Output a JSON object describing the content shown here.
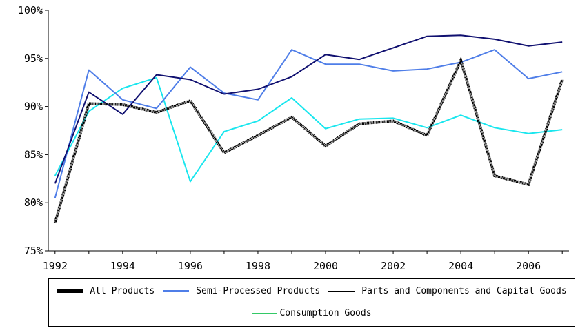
{
  "chart_data": {
    "type": "line",
    "x": [
      1992,
      1993,
      1994,
      1995,
      1996,
      1997,
      1998,
      1999,
      2000,
      2001,
      2002,
      2003,
      2004,
      2005,
      2006,
      2007
    ],
    "xticks": [
      1992,
      1994,
      1996,
      1998,
      2000,
      2002,
      2004,
      2006
    ],
    "xtick_labels": [
      "1992",
      "1994",
      "1996",
      "1998",
      "2000",
      "2002",
      "2004",
      "2006"
    ],
    "yticks": [
      75,
      80,
      85,
      90,
      95,
      100
    ],
    "ytick_labels": [
      "75%",
      "80%",
      "85%",
      "90%",
      "95%",
      "100%"
    ],
    "ylim": [
      75,
      100
    ],
    "xlim": [
      1991.8,
      2007.2
    ],
    "grid": false,
    "legend_position": "bottom",
    "series": [
      {
        "name": "All Products",
        "color": "#000000",
        "style": "thick",
        "values": [
          77.9,
          90.3,
          90.2,
          89.4,
          90.6,
          85.2,
          87.0,
          88.9,
          85.9,
          88.2,
          88.5,
          87.0,
          94.8,
          82.8,
          81.9,
          92.8
        ]
      },
      {
        "name": "Semi-Processed Products",
        "color": "#4f7ee8",
        "style": "normal",
        "values": [
          80.5,
          93.8,
          90.7,
          89.8,
          94.1,
          91.4,
          90.7,
          95.9,
          94.4,
          94.4,
          93.7,
          93.9,
          94.6,
          95.9,
          92.9,
          93.6
        ]
      },
      {
        "name": "Parts and Components and Capital Goods",
        "color": "#101070",
        "style": "normal",
        "values": [
          82.0,
          91.5,
          89.2,
          93.3,
          92.8,
          91.3,
          91.8,
          93.1,
          95.4,
          94.9,
          96.1,
          97.3,
          97.4,
          97.0,
          96.3,
          96.7
        ]
      },
      {
        "name": "Consumption Goods",
        "color": "#19e6ee",
        "legend_color": "#33c966",
        "style": "normal",
        "values": [
          82.8,
          89.5,
          91.9,
          93.0,
          82.2,
          87.4,
          88.5,
          90.9,
          87.7,
          88.7,
          88.8,
          87.8,
          89.1,
          87.8,
          87.2,
          87.6
        ]
      }
    ]
  }
}
